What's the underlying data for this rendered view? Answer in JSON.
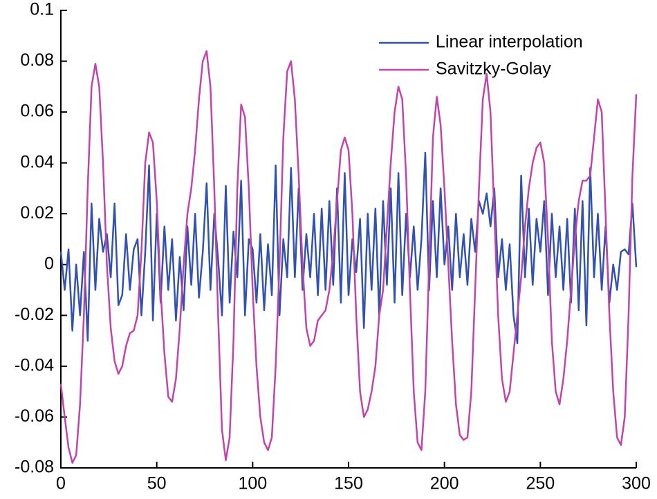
{
  "chart_data": {
    "type": "line",
    "x": [
      0,
      2,
      4,
      6,
      8,
      10,
      12,
      14,
      16,
      18,
      20,
      22,
      24,
      26,
      28,
      30,
      32,
      34,
      36,
      38,
      40,
      42,
      44,
      46,
      48,
      50,
      52,
      54,
      56,
      58,
      60,
      62,
      64,
      66,
      68,
      70,
      72,
      74,
      76,
      78,
      80,
      82,
      84,
      86,
      88,
      90,
      92,
      94,
      96,
      98,
      100,
      102,
      104,
      106,
      108,
      110,
      112,
      114,
      116,
      118,
      120,
      122,
      124,
      126,
      128,
      130,
      132,
      134,
      136,
      138,
      140,
      142,
      144,
      146,
      148,
      150,
      152,
      154,
      156,
      158,
      160,
      162,
      164,
      166,
      168,
      170,
      172,
      174,
      176,
      178,
      180,
      182,
      184,
      186,
      188,
      190,
      192,
      194,
      196,
      198,
      200,
      202,
      204,
      206,
      208,
      210,
      212,
      214,
      216,
      218,
      220,
      222,
      224,
      226,
      228,
      230,
      232,
      234,
      236,
      238,
      240,
      242,
      244,
      246,
      248,
      250,
      252,
      254,
      256,
      258,
      260,
      262,
      264,
      266,
      268,
      270,
      272,
      274,
      276,
      278,
      280,
      282,
      284,
      286,
      288,
      290,
      292,
      294,
      296,
      298,
      300
    ],
    "series": [
      {
        "name": "Linear interpolation",
        "color": "#3152b0",
        "values": [
          0.005,
          -0.01,
          0.006,
          -0.026,
          0.0,
          -0.02,
          0.005,
          -0.03,
          0.024,
          -0.01,
          0.018,
          0.005,
          0.012,
          -0.005,
          0.024,
          -0.016,
          -0.012,
          0.012,
          -0.01,
          0.006,
          0.01,
          -0.02,
          0.005,
          0.039,
          -0.022,
          0.02,
          -0.015,
          0.015,
          -0.01,
          0.01,
          -0.022,
          0.003,
          -0.018,
          0.015,
          -0.008,
          0.02,
          -0.013,
          0.005,
          0.032,
          -0.01,
          0.02,
          0.002,
          -0.02,
          0.031,
          -0.015,
          0.013,
          -0.005,
          0.033,
          -0.02,
          0.01,
          0.006,
          -0.015,
          0.012,
          -0.018,
          0.008,
          -0.012,
          0.039,
          -0.02,
          0.01,
          -0.005,
          0.038,
          -0.005,
          0.03,
          -0.01,
          0.012,
          -0.005,
          0.02,
          -0.012,
          0.022,
          -0.01,
          0.025,
          -0.008,
          0.03,
          -0.015,
          0.036,
          -0.012,
          0.01,
          -0.003,
          0.018,
          -0.025,
          0.02,
          -0.01,
          0.022,
          -0.02,
          0.025,
          -0.008,
          0.03,
          -0.015,
          0.036,
          -0.012,
          0.02,
          -0.005,
          0.015,
          -0.01,
          0.01,
          0.044,
          -0.01,
          0.025,
          -0.005,
          0.03,
          0.0,
          0.015,
          -0.01,
          0.02,
          -0.005,
          0.012,
          -0.008,
          0.018,
          0.005,
          0.025,
          0.02,
          0.028,
          0.015,
          0.03,
          -0.005,
          0.01,
          -0.01,
          0.008,
          -0.02,
          -0.031,
          0.035,
          -0.005,
          0.022,
          -0.008,
          0.018,
          0.005,
          0.025,
          -0.012,
          0.02,
          -0.005,
          0.015,
          -0.01,
          0.018,
          -0.015,
          0.022,
          -0.018,
          0.025,
          -0.024,
          0.038,
          -0.005,
          0.02,
          -0.01,
          0.015,
          -0.015,
          0.0,
          -0.01,
          0.005,
          0.006,
          0.004,
          0.024,
          -0.001
        ]
      },
      {
        "name": "Savitzky-Golay",
        "color": "#c244aa",
        "values": [
          -0.047,
          -0.06,
          -0.072,
          -0.078,
          -0.075,
          -0.055,
          -0.02,
          0.03,
          0.07,
          0.079,
          0.07,
          0.04,
          0.0,
          -0.025,
          -0.038,
          -0.043,
          -0.04,
          -0.032,
          -0.027,
          -0.026,
          -0.02,
          0.005,
          0.04,
          0.052,
          0.048,
          0.025,
          -0.01,
          -0.035,
          -0.052,
          -0.054,
          -0.045,
          -0.025,
          0.0,
          0.02,
          0.03,
          0.045,
          0.065,
          0.08,
          0.084,
          0.07,
          0.03,
          -0.02,
          -0.065,
          -0.077,
          -0.068,
          -0.03,
          0.03,
          0.063,
          0.058,
          0.03,
          -0.01,
          -0.04,
          -0.06,
          -0.07,
          -0.073,
          -0.068,
          -0.04,
          0.0,
          0.05,
          0.076,
          0.08,
          0.065,
          0.035,
          0.0,
          -0.025,
          -0.032,
          -0.03,
          -0.022,
          -0.02,
          -0.018,
          -0.01,
          0.005,
          0.025,
          0.045,
          0.05,
          0.045,
          0.02,
          -0.02,
          -0.05,
          -0.06,
          -0.057,
          -0.05,
          -0.04,
          -0.02,
          -0.01,
          0.015,
          0.04,
          0.06,
          0.07,
          0.065,
          0.035,
          -0.01,
          -0.05,
          -0.07,
          -0.073,
          -0.05,
          0.0,
          0.05,
          0.066,
          0.055,
          0.03,
          0.0,
          -0.03,
          -0.055,
          -0.067,
          -0.069,
          -0.068,
          -0.05,
          -0.01,
          0.03,
          0.065,
          0.075,
          0.06,
          0.02,
          -0.02,
          -0.045,
          -0.054,
          -0.05,
          -0.035,
          -0.02,
          -0.005,
          0.015,
          0.03,
          0.04,
          0.046,
          0.048,
          0.04,
          0.01,
          -0.03,
          -0.05,
          -0.055,
          -0.045,
          -0.03,
          -0.01,
          0.01,
          0.025,
          0.033,
          0.033,
          0.035,
          0.05,
          0.065,
          0.06,
          0.02,
          -0.02,
          -0.05,
          -0.068,
          -0.071,
          -0.06,
          -0.02,
          0.035,
          0.067
        ]
      }
    ],
    "xlim": [
      0,
      300
    ],
    "xticks": [
      0,
      50,
      100,
      150,
      200,
      250,
      300
    ],
    "ylim": [
      -0.08,
      0.1
    ],
    "yticks": [
      -0.08,
      -0.06,
      -0.04,
      -0.02,
      0,
      0.02,
      0.04,
      0.06,
      0.08,
      0.1
    ],
    "legend": "top-right",
    "grid": false
  }
}
